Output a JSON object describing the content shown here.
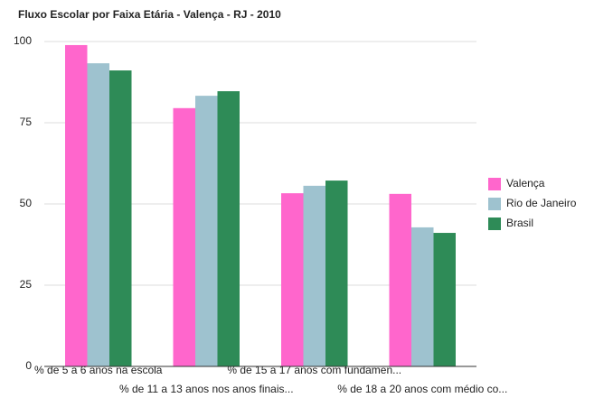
{
  "chart_data": {
    "type": "bar",
    "title": "Fluxo Escolar por Faixa Etária - Valença - RJ - 2010",
    "categories": [
      "% de 5 a 6 anos na escola",
      "% de 11 a 13 anos nos anos finais...",
      "% de 15 a 17 anos com fundamen...",
      "% de 18 a 20 anos com médio co..."
    ],
    "series": [
      {
        "name": "Valença",
        "color": "#ff66cc",
        "values": [
          98.9,
          79.5,
          53.3,
          53.1
        ]
      },
      {
        "name": "Rio de Janeiro",
        "color": "#9ec2cf",
        "values": [
          93.3,
          83.3,
          55.6,
          42.8
        ]
      },
      {
        "name": "Brasil",
        "color": "#2e8b57",
        "values": [
          91.1,
          84.7,
          57.2,
          41.1
        ]
      }
    ],
    "ylim": [
      0,
      100
    ],
    "yticks": [
      0,
      25,
      50,
      75,
      100
    ],
    "grid": true,
    "legend": "right"
  }
}
